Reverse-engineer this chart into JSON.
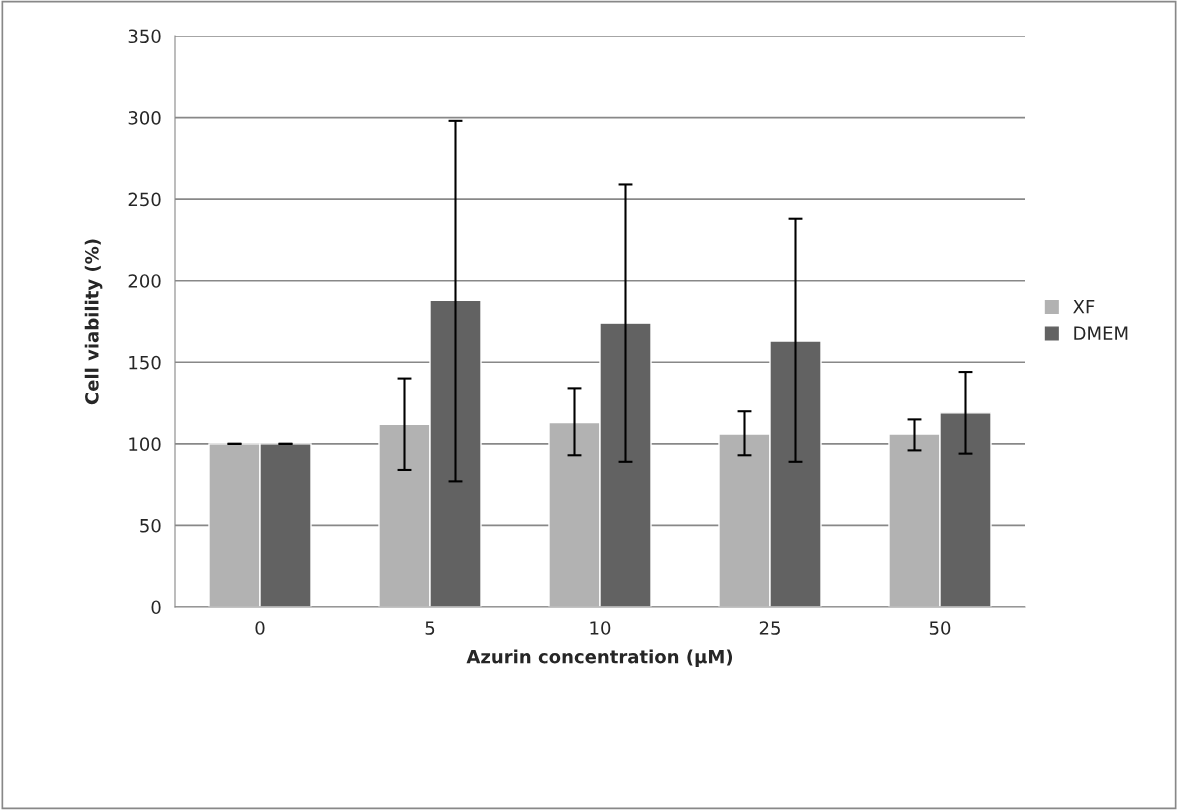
{
  "chart_data": {
    "type": "bar",
    "xlabel": "Azurin concentration (µM)",
    "ylabel": "Cell viability (%)",
    "categories": [
      "0",
      "5",
      "10",
      "25",
      "50"
    ],
    "series": [
      {
        "name": "XF",
        "color": "#b2b2b2",
        "values": [
          100,
          112,
          113,
          106,
          106
        ],
        "errors": [
          [
            100,
            100
          ],
          [
            84,
            140
          ],
          [
            93,
            134
          ],
          [
            93,
            120
          ],
          [
            96,
            115
          ]
        ]
      },
      {
        "name": "DMEM",
        "color": "#626262",
        "values": [
          100,
          188,
          174,
          163,
          119
        ],
        "errors": [
          [
            100,
            100
          ],
          [
            77,
            298
          ],
          [
            89,
            259
          ],
          [
            89,
            238
          ],
          [
            94,
            144
          ]
        ]
      }
    ],
    "ylim": [
      0,
      350
    ],
    "yticks": [
      0,
      50,
      100,
      150,
      200,
      250,
      300,
      350
    ],
    "grid": "y",
    "legend": "right"
  }
}
